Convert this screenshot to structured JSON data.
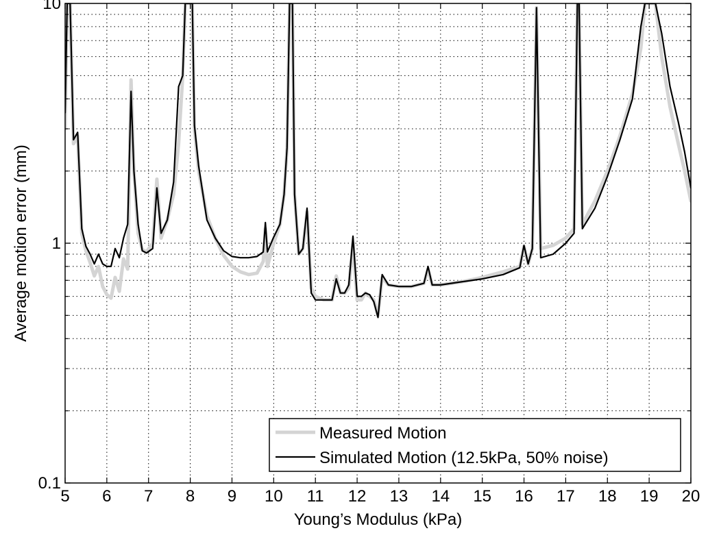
{
  "chart_data": {
    "type": "line",
    "title": "",
    "xlabel": "Young’s Modulus (kPa)",
    "ylabel": "Average motion error (mm)",
    "xlim": [
      5,
      20
    ],
    "ylim": [
      0.1,
      10
    ],
    "yscale": "log",
    "grid": true,
    "legend_position": "bottom-right",
    "x_ticks": [
      5,
      6,
      7,
      8,
      9,
      10,
      11,
      12,
      13,
      14,
      15,
      16,
      17,
      18,
      19,
      20
    ],
    "x_tick_labels": [
      "5",
      "6",
      "7",
      "8",
      "9",
      "10",
      "11",
      "12",
      "13",
      "14",
      "15",
      "16",
      "17",
      "18",
      "19",
      "20"
    ],
    "y_ticks": [
      0.1,
      1,
      10
    ],
    "y_tick_labels": [
      "0.1",
      "1",
      "10"
    ],
    "series": [
      {
        "name": "Measured Motion",
        "color": "#d4d4d4",
        "points": [
          [
            5.0,
            3.0
          ],
          [
            5.05,
            10
          ],
          [
            5.12,
            10
          ],
          [
            5.2,
            2.6
          ],
          [
            5.3,
            2.8
          ],
          [
            5.4,
            1.1
          ],
          [
            5.5,
            0.93
          ],
          [
            5.6,
            0.83
          ],
          [
            5.7,
            0.73
          ],
          [
            5.8,
            0.8
          ],
          [
            5.9,
            0.66
          ],
          [
            6.0,
            0.61
          ],
          [
            6.1,
            0.59
          ],
          [
            6.2,
            0.72
          ],
          [
            6.3,
            0.63
          ],
          [
            6.4,
            0.86
          ],
          [
            6.5,
            0.78
          ],
          [
            6.58,
            4.8
          ],
          [
            6.65,
            2.0
          ],
          [
            6.75,
            1.1
          ],
          [
            6.85,
            0.94
          ],
          [
            6.95,
            0.92
          ],
          [
            7.1,
            1.0
          ],
          [
            7.2,
            1.85
          ],
          [
            7.3,
            1.05
          ],
          [
            7.45,
            1.25
          ],
          [
            7.6,
            1.6
          ],
          [
            7.72,
            2.6
          ],
          [
            7.82,
            5.0
          ],
          [
            7.88,
            10
          ],
          [
            8.05,
            10
          ],
          [
            8.1,
            3.0
          ],
          [
            8.2,
            2.0
          ],
          [
            8.4,
            1.3
          ],
          [
            8.6,
            1.05
          ],
          [
            8.8,
            0.89
          ],
          [
            9.0,
            0.8
          ],
          [
            9.2,
            0.76
          ],
          [
            9.4,
            0.74
          ],
          [
            9.6,
            0.75
          ],
          [
            9.75,
            0.84
          ],
          [
            9.8,
            1.15
          ],
          [
            9.85,
            0.8
          ],
          [
            10.0,
            1.0
          ],
          [
            10.15,
            1.2
          ],
          [
            10.25,
            1.6
          ],
          [
            10.32,
            2.5
          ],
          [
            10.38,
            10
          ],
          [
            10.45,
            10
          ],
          [
            10.5,
            1.6
          ],
          [
            10.6,
            0.9
          ],
          [
            10.7,
            0.95
          ],
          [
            10.8,
            1.35
          ],
          [
            10.9,
            0.65
          ],
          [
            11.0,
            0.6
          ],
          [
            11.2,
            0.58
          ],
          [
            11.4,
            0.58
          ],
          [
            11.5,
            0.73
          ],
          [
            11.6,
            0.62
          ],
          [
            11.7,
            0.62
          ],
          [
            11.8,
            0.65
          ],
          [
            11.9,
            1.0
          ],
          [
            12.0,
            0.58
          ],
          [
            12.1,
            0.58
          ],
          [
            12.2,
            0.62
          ],
          [
            12.3,
            0.6
          ],
          [
            12.4,
            0.58
          ],
          [
            12.5,
            0.5
          ],
          [
            12.6,
            0.72
          ],
          [
            12.75,
            0.67
          ],
          [
            13.0,
            0.66
          ],
          [
            13.3,
            0.66
          ],
          [
            13.6,
            0.68
          ],
          [
            13.7,
            0.78
          ],
          [
            13.8,
            0.67
          ],
          [
            14.0,
            0.67
          ],
          [
            14.5,
            0.69
          ],
          [
            15.0,
            0.72
          ],
          [
            15.5,
            0.76
          ],
          [
            15.9,
            0.8
          ],
          [
            16.0,
            0.97
          ],
          [
            16.1,
            0.82
          ],
          [
            16.2,
            0.95
          ],
          [
            16.3,
            9.6
          ],
          [
            16.4,
            0.95
          ],
          [
            16.7,
            0.98
          ],
          [
            17.0,
            1.05
          ],
          [
            17.2,
            1.15
          ],
          [
            17.28,
            10
          ],
          [
            17.32,
            10
          ],
          [
            17.4,
            1.2
          ],
          [
            17.7,
            1.5
          ],
          [
            18.0,
            2.0
          ],
          [
            18.3,
            2.8
          ],
          [
            18.6,
            4.2
          ],
          [
            18.8,
            6.5
          ],
          [
            18.9,
            10
          ],
          [
            19.15,
            10
          ],
          [
            19.3,
            6.0
          ],
          [
            19.5,
            3.7
          ],
          [
            19.7,
            2.6
          ],
          [
            19.85,
            2.0
          ],
          [
            20.0,
            1.5
          ]
        ]
      },
      {
        "name": "Simulated Motion (12.5kPa, 50% noise)",
        "color": "#000000",
        "points": [
          [
            5.0,
            3.5
          ],
          [
            5.05,
            10
          ],
          [
            5.12,
            10
          ],
          [
            5.2,
            2.7
          ],
          [
            5.3,
            2.9
          ],
          [
            5.4,
            1.15
          ],
          [
            5.5,
            0.97
          ],
          [
            5.6,
            0.9
          ],
          [
            5.7,
            0.82
          ],
          [
            5.8,
            0.9
          ],
          [
            5.9,
            0.82
          ],
          [
            6.0,
            0.8
          ],
          [
            6.1,
            0.8
          ],
          [
            6.2,
            0.95
          ],
          [
            6.3,
            0.87
          ],
          [
            6.4,
            1.05
          ],
          [
            6.5,
            1.2
          ],
          [
            6.58,
            4.3
          ],
          [
            6.65,
            2.0
          ],
          [
            6.75,
            1.2
          ],
          [
            6.85,
            0.93
          ],
          [
            6.95,
            0.91
          ],
          [
            7.1,
            0.95
          ],
          [
            7.2,
            1.7
          ],
          [
            7.3,
            1.1
          ],
          [
            7.45,
            1.25
          ],
          [
            7.6,
            1.8
          ],
          [
            7.72,
            4.5
          ],
          [
            7.82,
            5.0
          ],
          [
            7.88,
            10
          ],
          [
            8.05,
            10
          ],
          [
            8.1,
            3.1
          ],
          [
            8.2,
            2.1
          ],
          [
            8.4,
            1.25
          ],
          [
            8.6,
            1.05
          ],
          [
            8.8,
            0.93
          ],
          [
            9.0,
            0.88
          ],
          [
            9.2,
            0.87
          ],
          [
            9.4,
            0.87
          ],
          [
            9.6,
            0.88
          ],
          [
            9.75,
            0.92
          ],
          [
            9.8,
            1.22
          ],
          [
            9.85,
            0.92
          ],
          [
            10.0,
            1.06
          ],
          [
            10.15,
            1.2
          ],
          [
            10.25,
            1.6
          ],
          [
            10.32,
            2.5
          ],
          [
            10.38,
            10
          ],
          [
            10.45,
            10
          ],
          [
            10.5,
            1.6
          ],
          [
            10.6,
            0.9
          ],
          [
            10.7,
            0.95
          ],
          [
            10.8,
            1.4
          ],
          [
            10.9,
            0.62
          ],
          [
            11.0,
            0.58
          ],
          [
            11.2,
            0.58
          ],
          [
            11.4,
            0.58
          ],
          [
            11.5,
            0.71
          ],
          [
            11.6,
            0.62
          ],
          [
            11.7,
            0.62
          ],
          [
            11.8,
            0.67
          ],
          [
            11.9,
            1.07
          ],
          [
            12.0,
            0.6
          ],
          [
            12.1,
            0.6
          ],
          [
            12.2,
            0.62
          ],
          [
            12.3,
            0.61
          ],
          [
            12.4,
            0.57
          ],
          [
            12.5,
            0.49
          ],
          [
            12.6,
            0.74
          ],
          [
            12.75,
            0.67
          ],
          [
            13.0,
            0.66
          ],
          [
            13.3,
            0.66
          ],
          [
            13.6,
            0.68
          ],
          [
            13.7,
            0.8
          ],
          [
            13.8,
            0.67
          ],
          [
            14.0,
            0.67
          ],
          [
            14.5,
            0.69
          ],
          [
            15.0,
            0.71
          ],
          [
            15.5,
            0.74
          ],
          [
            15.9,
            0.79
          ],
          [
            16.0,
            0.98
          ],
          [
            16.1,
            0.82
          ],
          [
            16.2,
            0.95
          ],
          [
            16.3,
            9.6
          ],
          [
            16.4,
            0.87
          ],
          [
            16.7,
            0.9
          ],
          [
            17.0,
            1.0
          ],
          [
            17.2,
            1.1
          ],
          [
            17.28,
            10
          ],
          [
            17.32,
            10
          ],
          [
            17.4,
            1.15
          ],
          [
            17.7,
            1.4
          ],
          [
            18.0,
            1.9
          ],
          [
            18.3,
            2.7
          ],
          [
            18.6,
            4.0
          ],
          [
            18.8,
            8.0
          ],
          [
            18.9,
            10
          ],
          [
            19.15,
            10
          ],
          [
            19.3,
            7.5
          ],
          [
            19.5,
            4.5
          ],
          [
            19.7,
            3.2
          ],
          [
            19.85,
            2.4
          ],
          [
            20.0,
            1.7
          ]
        ]
      }
    ]
  }
}
